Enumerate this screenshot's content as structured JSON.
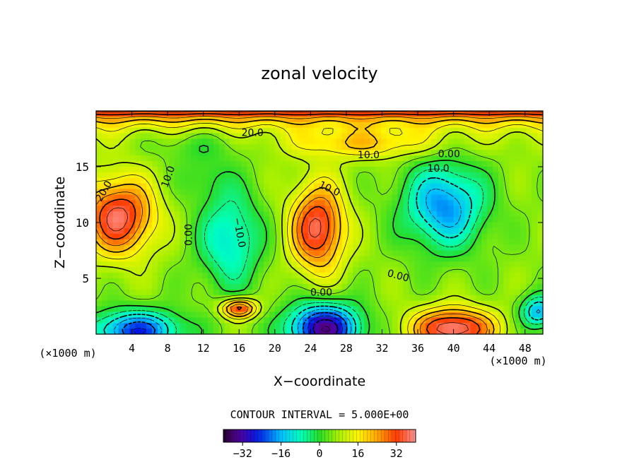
{
  "chart_data": {
    "type": "heatmap",
    "title": "zonal velocity",
    "xlabel": "X−coordinate",
    "ylabel": "Z−coordinate",
    "x_unit_label_left": "(×1000 m)",
    "x_unit_label_right": "(×1000 m)",
    "xlim": [
      0,
      50
    ],
    "ylim": [
      0,
      20
    ],
    "x_ticks": [
      4,
      8,
      12,
      16,
      20,
      24,
      28,
      32,
      36,
      40,
      44,
      48
    ],
    "x_tick_labels": [
      "4",
      "8",
      "12",
      "16",
      "20",
      "24",
      "28",
      "32",
      "36",
      "40",
      "44",
      "48"
    ],
    "y_ticks": [
      5,
      10,
      15
    ],
    "y_tick_labels": [
      "5",
      "10",
      "15"
    ],
    "contour_interval_text": "CONTOUR INTERVAL = 5.000E+00",
    "contour_interval": 5,
    "contour_labels": [
      {
        "text": "20.0",
        "x": 17.5,
        "y": 18.0,
        "angle": 0
      },
      {
        "text": "10.0",
        "x": 30.5,
        "y": 16.0,
        "angle": 0
      },
      {
        "text": "0.00",
        "x": 39.5,
        "y": 16.1,
        "angle": 0
      },
      {
        "text": "10.0",
        "x": 38.3,
        "y": 14.8,
        "angle": 0
      },
      {
        "text": "10.0",
        "x": 26.1,
        "y": 13.0,
        "angle": 25
      },
      {
        "text": "20.0",
        "x": 0.9,
        "y": 12.8,
        "angle": -60
      },
      {
        "text": "10.0",
        "x": 8.1,
        "y": 14.1,
        "angle": -70
      },
      {
        "text": "0.00",
        "x": 10.4,
        "y": 8.9,
        "angle": -90
      },
      {
        "text": "−10.0",
        "x": 16.0,
        "y": 9.1,
        "angle": 80
      },
      {
        "text": "0.00",
        "x": 33.8,
        "y": 5.2,
        "angle": 15
      },
      {
        "text": "0.00",
        "x": 25.2,
        "y": 3.7,
        "angle": 0
      }
    ],
    "colorbar": {
      "range": [
        -40,
        40
      ],
      "tick_values": [
        -32,
        -16,
        0,
        16,
        32
      ],
      "tick_labels": [
        "−32",
        "−16",
        "0",
        "16",
        "32"
      ]
    },
    "features": [
      {
        "kind": "max",
        "x": 2.5,
        "y": 10.5,
        "amp": 31,
        "sx": 4.0,
        "sy": 3.4
      },
      {
        "kind": "max",
        "x": 24.8,
        "y": 9.5,
        "amp": 31,
        "sx": 3.0,
        "sy": 3.8
      },
      {
        "kind": "min",
        "x": 15.0,
        "y": 8.5,
        "amp": -17,
        "sx": 3.5,
        "sy": 4.5
      },
      {
        "kind": "min",
        "x": 39.0,
        "y": 11.5,
        "amp": -25,
        "sx": 4.5,
        "sy": 3.8
      },
      {
        "kind": "min",
        "x": 25.5,
        "y": 0.5,
        "amp": -40,
        "sx": 4.0,
        "sy": 2.2
      },
      {
        "kind": "min",
        "x": 4.5,
        "y": 0.3,
        "amp": -30,
        "sx": 5.0,
        "sy": 1.8
      },
      {
        "kind": "max",
        "x": 40.0,
        "y": 0.5,
        "amp": 34,
        "sx": 4.5,
        "sy": 1.8
      },
      {
        "kind": "max",
        "x": 16.0,
        "y": 2.3,
        "amp": 28,
        "sx": 2.0,
        "sy": 0.9
      },
      {
        "kind": "min",
        "x": 49.5,
        "y": 2.0,
        "amp": -22,
        "sx": 2.0,
        "sy": 1.5
      },
      {
        "kind": "min",
        "x": 11.0,
        "y": 17.0,
        "amp": -6,
        "sx": 6.0,
        "sy": 1.6
      },
      {
        "kind": "max",
        "x": 30.0,
        "y": 17.0,
        "amp": 12,
        "sx": 8.0,
        "sy": 1.3
      },
      {
        "kind": "min",
        "x": 12.0,
        "y": 14.0,
        "amp": -5,
        "sx": 3.0,
        "sy": 2.0
      }
    ],
    "top_band": {
      "amp": 34,
      "scale": 1.2
    },
    "background": 6
  }
}
